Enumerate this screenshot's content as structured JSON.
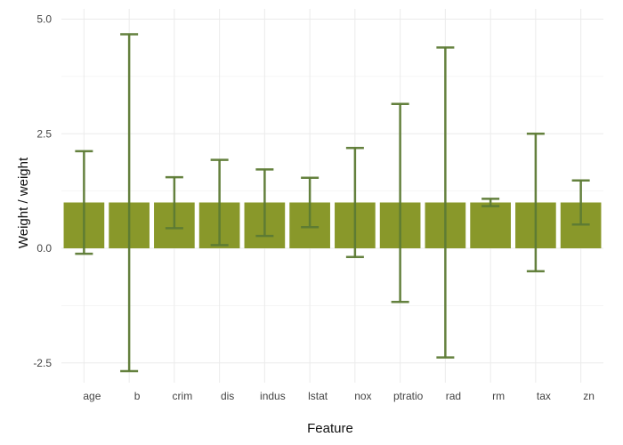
{
  "chart_data": {
    "type": "bar",
    "xlabel": "Feature",
    "ylabel": "Weight / weight",
    "ylim": [
      -2.9,
      5.0
    ],
    "y_ticks": [
      5.0,
      2.5,
      0.0,
      -2.5
    ],
    "y_tick_labels": [
      "5.0",
      "2.5",
      "0.0",
      "-2.5"
    ],
    "grid": true,
    "categories": [
      "age",
      "b",
      "crim",
      "dis",
      "indus",
      "lstat",
      "nox",
      "ptratio",
      "rad",
      "rm",
      "tax",
      "zn"
    ],
    "values": [
      1,
      1,
      1,
      1,
      1,
      1,
      1,
      1,
      1,
      1,
      1,
      1
    ],
    "error_low": [
      -0.12,
      -2.68,
      0.44,
      0.07,
      0.27,
      0.46,
      -0.19,
      -1.17,
      -2.38,
      0.92,
      -0.5,
      0.52
    ],
    "error_high": [
      2.12,
      4.67,
      1.55,
      1.93,
      1.72,
      1.54,
      2.19,
      3.15,
      4.38,
      1.08,
      2.5,
      1.48
    ],
    "colors": {
      "bar": "#89982A",
      "errorbar": "#5C7A34",
      "grid": "#EBEBEB",
      "zero_line": "#E5E5E5"
    }
  }
}
